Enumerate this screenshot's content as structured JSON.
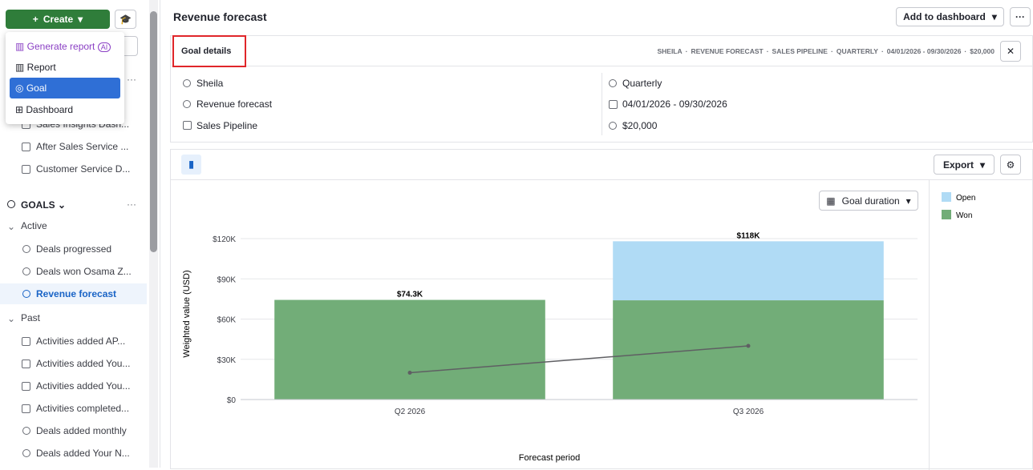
{
  "sidebar": {
    "create": "Create",
    "menu": {
      "generate_report": "Generate report",
      "ai_badge": "AI",
      "report": "Report",
      "goal": "Goal",
      "dashboard": "Dashboard"
    },
    "dashboards": [
      "Sales Insights Dash...",
      "After Sales Service ...",
      "Customer Service D..."
    ],
    "goals_header": "GOALS",
    "active_label": "Active",
    "active": [
      "Deals progressed",
      "Deals won Osama Z...",
      "Revenue forecast"
    ],
    "past_label": "Past",
    "past": [
      "Activities added AP...",
      "Activities added You...",
      "Activities added You...",
      "Activities completed...",
      "Deals added monthly",
      "Deals added Your N..."
    ]
  },
  "header": {
    "title": "Revenue forecast",
    "add_to_dashboard": "Add to dashboard"
  },
  "goal_details": {
    "title": "Goal details",
    "breadcrumb": [
      "SHEILA",
      "REVENUE FORECAST",
      "SALES PIPELINE",
      "QUARTERLY",
      "04/01/2026 - 09/30/2026",
      "$20,000"
    ],
    "left": [
      "Sheila",
      "Revenue forecast",
      "Sales Pipeline"
    ],
    "right": [
      "Quarterly",
      "04/01/2026 - 09/30/2026",
      "$20,000"
    ]
  },
  "toolbar": {
    "export": "Export",
    "goal_duration": "Goal duration"
  },
  "chart_data": {
    "type": "stacked_bar",
    "x_label": "Forecast period",
    "y_label": "Weighted value (USD)",
    "categories": [
      "Q2 2026",
      "Q3 2026"
    ],
    "series": [
      {
        "name": "Won",
        "color": "#72ad78",
        "values": [
          74300,
          74000
        ]
      },
      {
        "name": "Open",
        "color": "#b0dbf5",
        "values": [
          0,
          44000
        ]
      }
    ],
    "totals": {
      "values": [
        74300,
        118000
      ],
      "value_labels": [
        "$74.3K",
        "$118K"
      ]
    },
    "target_line": {
      "color": "#5f5f63",
      "values": [
        20000,
        40000
      ]
    },
    "ylim": [
      0,
      120000
    ],
    "yticks": [
      {
        "value": 0,
        "label": "$0"
      },
      {
        "value": 30000,
        "label": "$30K"
      },
      {
        "value": 60000,
        "label": "$60K"
      },
      {
        "value": 90000,
        "label": "$90K"
      },
      {
        "value": 120000,
        "label": "$120K"
      }
    ],
    "grid": true
  }
}
